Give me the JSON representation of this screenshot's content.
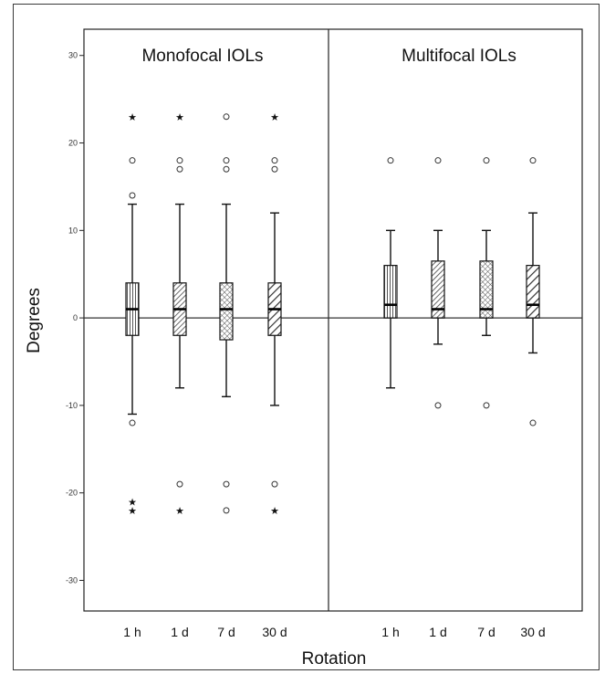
{
  "chart_data": {
    "type": "box",
    "xlabel": "Rotation",
    "ylabel": "Degrees",
    "ylim": [
      -33.5,
      33
    ],
    "yticks": [
      -30,
      -20,
      -10,
      0,
      10,
      20,
      30
    ],
    "categories": [
      "1 h",
      "1 d",
      "7 d",
      "30 d"
    ],
    "reference_line": 0,
    "panels": [
      {
        "name": "Monofocal IOLs",
        "boxes": [
          {
            "category": "1 h",
            "whisker_low": -11,
            "q1": -2,
            "median": 1,
            "q3": 4,
            "whisker_high": 13,
            "outliers": [
              18,
              14,
              -12
            ],
            "extremes": [
              23,
              -21,
              -22
            ],
            "pattern": "hatch-vertical"
          },
          {
            "category": "1 d",
            "whisker_low": -8,
            "q1": -2,
            "median": 1,
            "q3": 4,
            "whisker_high": 13,
            "outliers": [
              18,
              17,
              -19
            ],
            "extremes": [
              23,
              -22
            ],
            "pattern": "hatch-diagonal"
          },
          {
            "category": "7 d",
            "whisker_low": -9,
            "q1": -2.5,
            "median": 1,
            "q3": 4,
            "whisker_high": 13,
            "outliers": [
              23,
              18,
              17,
              -19,
              -22
            ],
            "extremes": [],
            "pattern": "hatch-cross"
          },
          {
            "category": "30 d",
            "whisker_low": -10,
            "q1": -2,
            "median": 1,
            "q3": 4,
            "whisker_high": 12,
            "outliers": [
              18,
              17,
              -19
            ],
            "extremes": [
              23,
              -22
            ],
            "pattern": "hatch-diagonal-wide"
          }
        ]
      },
      {
        "name": "Multifocal IOLs",
        "boxes": [
          {
            "category": "1 h",
            "whisker_low": -8,
            "q1": 0,
            "median": 1.5,
            "q3": 6,
            "whisker_high": 10,
            "outliers": [
              18
            ],
            "extremes": [],
            "pattern": "hatch-vertical"
          },
          {
            "category": "1 d",
            "whisker_low": -3,
            "q1": 0,
            "median": 1,
            "q3": 6.5,
            "whisker_high": 10,
            "outliers": [
              18,
              -10
            ],
            "extremes": [],
            "pattern": "hatch-diagonal"
          },
          {
            "category": "7 d",
            "whisker_low": -2,
            "q1": 0,
            "median": 1,
            "q3": 6.5,
            "whisker_high": 10,
            "outliers": [
              18,
              -10
            ],
            "extremes": [],
            "pattern": "hatch-cross"
          },
          {
            "category": "30 d",
            "whisker_low": -4,
            "q1": 0,
            "median": 1.5,
            "q3": 6,
            "whisker_high": 12,
            "outliers": [
              18,
              -12
            ],
            "extremes": [],
            "pattern": "hatch-diagonal-wide"
          }
        ]
      }
    ]
  }
}
